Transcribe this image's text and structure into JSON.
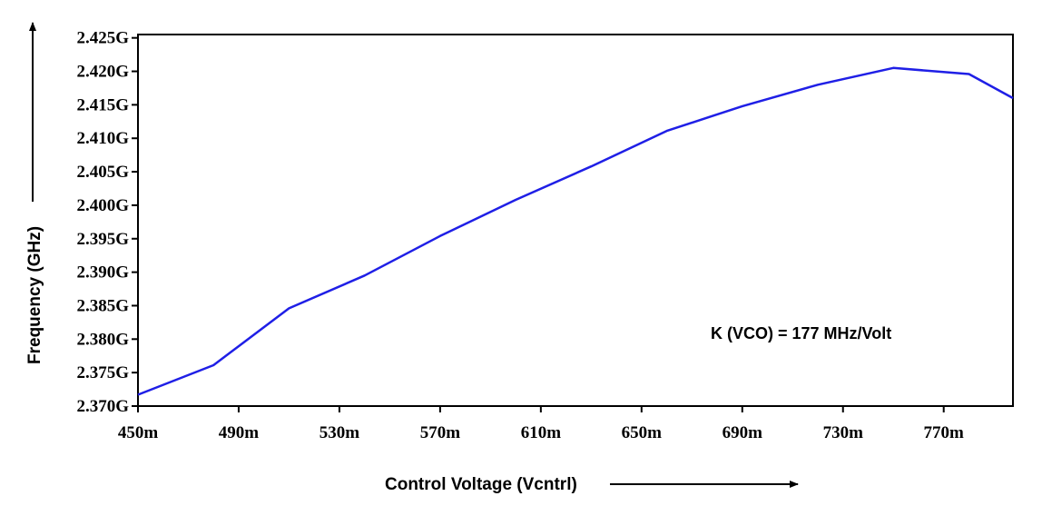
{
  "chart_data": {
    "type": "line",
    "title": "",
    "xlabel": "Control Voltage (Vcntrl)",
    "ylabel": "Frequency (GHz)",
    "annotation": "K (VCO) = 177 MHz/Volt",
    "xlim": [
      0.45,
      0.7975
    ],
    "ylim": [
      2.37,
      2.4255
    ],
    "x_ticks": [
      0.45,
      0.49,
      0.53,
      0.57,
      0.61,
      0.65,
      0.69,
      0.73,
      0.77
    ],
    "x_tick_labels": [
      "450m",
      "490m",
      "530m",
      "570m",
      "610m",
      "650m",
      "690m",
      "730m",
      "770m"
    ],
    "y_ticks": [
      2.37,
      2.375,
      2.38,
      2.385,
      2.39,
      2.395,
      2.4,
      2.405,
      2.41,
      2.415,
      2.42,
      2.425
    ],
    "y_tick_labels": [
      "2.370G",
      "2.375G",
      "2.380G",
      "2.385G",
      "2.390G",
      "2.395G",
      "2.400G",
      "2.405G",
      "2.410G",
      "2.415G",
      "2.420G",
      "2.425G"
    ],
    "grid": false,
    "series": [
      {
        "color": "#1f1fe6",
        "x": [
          0.45,
          0.48,
          0.51,
          0.54,
          0.57,
          0.6,
          0.63,
          0.66,
          0.69,
          0.72,
          0.75,
          0.78,
          0.7975
        ],
        "y": [
          2.3717,
          2.3761,
          2.3846,
          2.3895,
          2.3954,
          2.4008,
          2.4058,
          2.4111,
          2.4148,
          2.418,
          2.4205,
          2.4196,
          2.416
        ]
      }
    ]
  }
}
